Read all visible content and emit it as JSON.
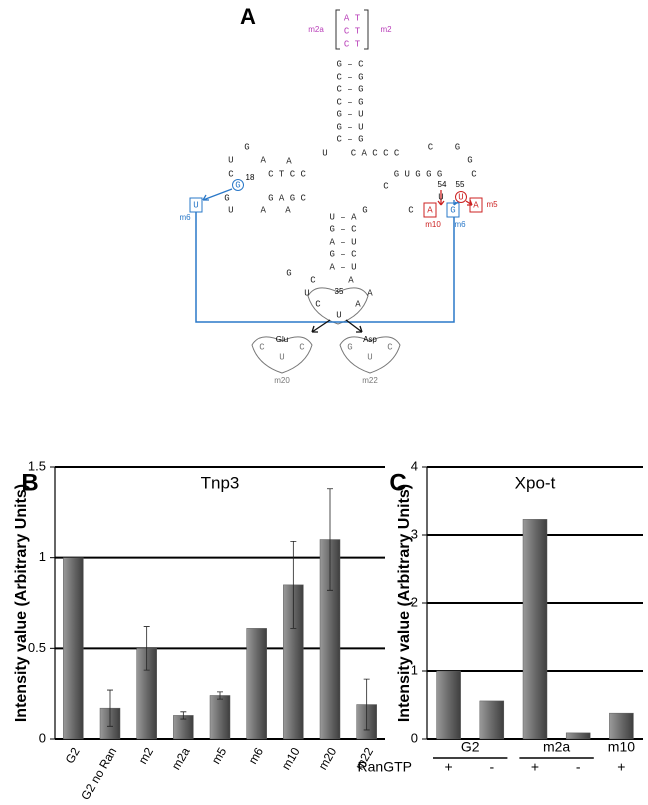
{
  "panel_labels": [
    "A",
    "B",
    "C"
  ],
  "diagram": {
    "texts": [
      "m2a",
      "A T",
      "C T",
      "C T",
      "m2",
      "G – C",
      "C – G",
      "C – G",
      "C – G",
      "G – U",
      "G – U",
      "C – G",
      "G",
      "C    G",
      "U     A",
      "U",
      "C A C C C",
      "G",
      "C",
      "A",
      "C T C C",
      "G U G G G",
      "C",
      "G",
      "18",
      "C",
      "54",
      "55",
      "U",
      "U",
      "G",
      "G A G C",
      "U     A",
      "A",
      "G",
      "C",
      "U – A",
      "G – C",
      "A – U",
      "G – C",
      "A – U",
      "G",
      "C",
      "A",
      "U",
      "A",
      "35",
      "C",
      "U",
      "A",
      "U",
      "m6",
      "A",
      "m10",
      "G",
      "m6",
      "A",
      "m5",
      "Glu",
      "C",
      "U",
      "C",
      "m20",
      "Asp",
      "G",
      "U",
      "C",
      "m22"
    ]
  },
  "chart_data": [
    {
      "type": "bar",
      "title": "Tnp3",
      "ylabel": "Intensity value (Arbitrary Units)",
      "categories": [
        "G2",
        "G2 no Ran",
        "m2",
        "m2a",
        "m5",
        "m6",
        "m10",
        "m20",
        "m22"
      ],
      "values": [
        1.0,
        0.17,
        0.5,
        0.13,
        0.24,
        0.61,
        0.85,
        1.1,
        0.19
      ],
      "errors": [
        null,
        0.1,
        0.12,
        0.02,
        0.02,
        null,
        0.24,
        0.28,
        0.14
      ],
      "ylim": [
        0,
        1.5
      ],
      "yticks": [
        0,
        0.5,
        1,
        1.5
      ],
      "grid": true,
      "color": "#5a5a5a"
    },
    {
      "type": "bar",
      "title": "Xpo-t",
      "ylabel": "Intensity value (Arbitrary Units)",
      "categories": [
        "+",
        "-",
        "+",
        "-",
        "+"
      ],
      "values": [
        1.0,
        0.56,
        3.23,
        0.09,
        0.38
      ],
      "groups": [
        "G2",
        "m2a",
        "m10"
      ],
      "row_label": "RanGTP",
      "ylim": [
        0,
        4
      ],
      "yticks": [
        0,
        1,
        2,
        3,
        4
      ],
      "grid": true,
      "color": "#5a5a5a"
    }
  ]
}
